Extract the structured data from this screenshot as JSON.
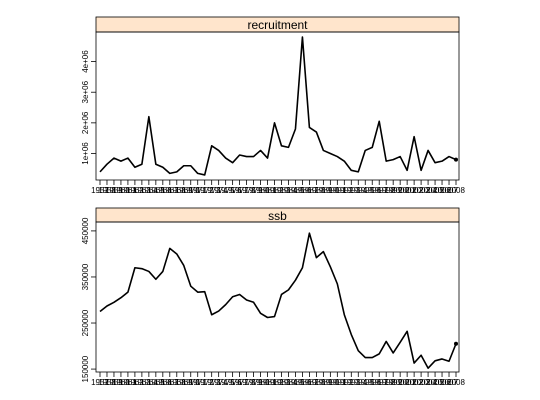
{
  "chart_data": [
    {
      "type": "line",
      "title": "recruitment",
      "x_range": [
        1957,
        2008
      ],
      "x_tick_labels": [
        "1957",
        "2008"
      ],
      "ylim": [
        200000,
        4900000
      ],
      "y_ticks": [
        1000000,
        2000000,
        3000000,
        4000000
      ],
      "y_tick_labels": [
        "1e+06",
        "2e+06",
        "3e+06",
        "4e+06"
      ],
      "grid": false,
      "series": [
        {
          "x": [
            1957,
            1958,
            1959,
            1960,
            1961,
            1962,
            1963,
            1964,
            1965,
            1966,
            1967,
            1968,
            1969,
            1970,
            1971,
            1972,
            1973,
            1974,
            1975,
            1976,
            1977,
            1978,
            1979,
            1980,
            1981,
            1982,
            1983,
            1984,
            1985,
            1986,
            1987,
            1988,
            1989,
            1990,
            1991,
            1992,
            1993,
            1994,
            1995,
            1996,
            1997,
            1998,
            1999,
            2000,
            2001,
            2002,
            2003,
            2004,
            2005,
            2006,
            2007,
            2008
          ],
          "values": [
            400000,
            650000,
            850000,
            750000,
            850000,
            550000,
            650000,
            2200000,
            650000,
            550000,
            350000,
            400000,
            600000,
            600000,
            350000,
            300000,
            1250000,
            1100000,
            850000,
            700000,
            950000,
            900000,
            900000,
            1100000,
            850000,
            2000000,
            1250000,
            1200000,
            1800000,
            4800000,
            1850000,
            1700000,
            1100000,
            1000000,
            900000,
            750000,
            450000,
            400000,
            1100000,
            1200000,
            2050000,
            750000,
            800000,
            900000,
            450000,
            1550000,
            450000,
            1100000,
            700000,
            750000,
            900000,
            800000
          ]
        }
      ]
    },
    {
      "type": "line",
      "title": "ssb",
      "x_range": [
        1957,
        2008
      ],
      "x_tick_labels": [
        "1957",
        "2008"
      ],
      "ylim": [
        148000,
        465000
      ],
      "y_ticks": [
        150000,
        250000,
        350000,
        450000
      ],
      "y_tick_labels": [
        "150000",
        "250000",
        "350000",
        "450000"
      ],
      "grid": false,
      "series": [
        {
          "x": [
            1957,
            1958,
            1959,
            1960,
            1961,
            1962,
            1963,
            1964,
            1965,
            1966,
            1967,
            1968,
            1969,
            1970,
            1971,
            1972,
            1973,
            1974,
            1975,
            1976,
            1977,
            1978,
            1979,
            1980,
            1981,
            1982,
            1983,
            1984,
            1985,
            1986,
            1987,
            1988,
            1989,
            1990,
            1991,
            1992,
            1993,
            1994,
            1995,
            1996,
            1997,
            1998,
            1999,
            2000,
            2001,
            2002,
            2003,
            2004,
            2005,
            2006,
            2007,
            2008
          ],
          "values": [
            275000,
            287000,
            295000,
            305000,
            317000,
            370000,
            368000,
            362000,
            345000,
            362000,
            412000,
            400000,
            375000,
            330000,
            317000,
            318000,
            268000,
            276000,
            290000,
            307000,
            312000,
            300000,
            295000,
            271000,
            262000,
            264000,
            312000,
            322000,
            343000,
            370000,
            445000,
            392000,
            405000,
            372000,
            335000,
            268000,
            225000,
            190000,
            175000,
            175000,
            183000,
            210000,
            185000,
            208000,
            232000,
            163000,
            180000,
            152000,
            168000,
            172000,
            167000,
            205000
          ]
        }
      ]
    }
  ]
}
